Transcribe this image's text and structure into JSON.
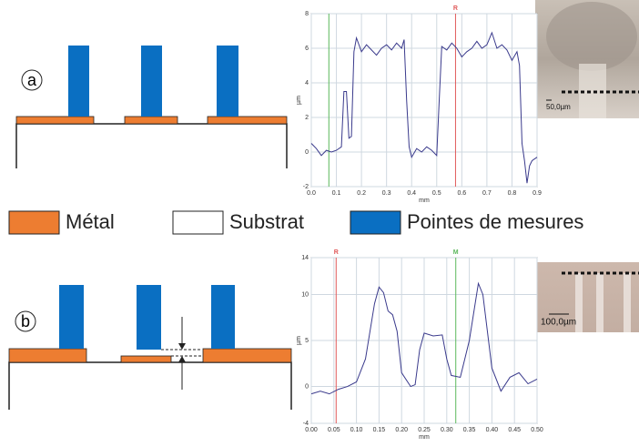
{
  "panel_labels": [
    "a",
    "b"
  ],
  "legend": [
    "Métal",
    "Substrat",
    "Pointes de mesures"
  ],
  "photos": [
    {
      "scale_label": "50,0µm"
    },
    {
      "scale_label": "100,0µm"
    }
  ],
  "chart_data": [
    {
      "type": "line",
      "x_label": "mm",
      "y_label": "µm",
      "xlim": [
        0,
        0.9
      ],
      "ylim": [
        -2,
        8
      ],
      "xticks": [
        {
          "value": 0,
          "label": "0.0"
        },
        0.1,
        0.2,
        0.3,
        0.4,
        0.5,
        0.6,
        0.7,
        0.8,
        0.9
      ],
      "yticks": [
        -2,
        0,
        2,
        4,
        6,
        8
      ],
      "grid": true,
      "markers": [
        {
          "x": 0.07,
          "color": "#5cb85c"
        },
        {
          "x": 0.575,
          "color": "#e05a5a",
          "label": "R"
        }
      ],
      "series": [
        {
          "color": "#3a3a8c",
          "x": [
            0,
            0.02,
            0.04,
            0.06,
            0.08,
            0.1,
            0.12,
            0.13,
            0.14,
            0.15,
            0.16,
            0.17,
            0.18,
            0.2,
            0.22,
            0.24,
            0.26,
            0.28,
            0.3,
            0.32,
            0.34,
            0.36,
            0.37,
            0.38,
            0.39,
            0.4,
            0.42,
            0.44,
            0.46,
            0.48,
            0.5,
            0.51,
            0.52,
            0.54,
            0.56,
            0.58,
            0.6,
            0.62,
            0.64,
            0.66,
            0.68,
            0.7,
            0.72,
            0.74,
            0.76,
            0.78,
            0.8,
            0.82,
            0.83,
            0.84,
            0.85,
            0.86,
            0.87,
            0.88,
            0.9
          ],
          "values": [
            0.5,
            0.2,
            -0.2,
            0.1,
            0,
            0.1,
            0.3,
            3.5,
            3.5,
            0.8,
            0.9,
            5.8,
            6.6,
            5.8,
            6.2,
            5.9,
            5.6,
            6,
            6.2,
            5.9,
            6.3,
            6,
            6.5,
            3,
            0.3,
            -0.3,
            0.2,
            0,
            0.3,
            0.1,
            -0.2,
            3,
            6.1,
            5.9,
            6.3,
            6,
            5.5,
            5.8,
            6,
            6.4,
            6,
            6.2,
            6.9,
            6,
            6.2,
            5.9,
            5.3,
            5.8,
            5,
            0.5,
            -0.5,
            -1.8,
            -0.8,
            -0.5,
            -0.3
          ]
        }
      ]
    },
    {
      "type": "line",
      "x_label": "mm",
      "y_label": "µm",
      "xlim": [
        0,
        0.5
      ],
      "ylim": [
        -4,
        14
      ],
      "xticks": [
        {
          "value": 0,
          "label": "0.00"
        },
        {
          "value": 0.05,
          "label": "0.05"
        },
        {
          "value": 0.1,
          "label": "0.10"
        },
        {
          "value": 0.15,
          "label": "0.15"
        },
        {
          "value": 0.2,
          "label": "0.20"
        },
        {
          "value": 0.25,
          "label": "0.25"
        },
        {
          "value": 0.3,
          "label": "0.30"
        },
        {
          "value": 0.35,
          "label": "0.35"
        },
        {
          "value": 0.4,
          "label": "0.40"
        },
        {
          "value": 0.45,
          "label": "0.45"
        },
        {
          "value": 0.5,
          "label": "0.50"
        }
      ],
      "yticks": [
        -4,
        0,
        5,
        10,
        14
      ],
      "grid": true,
      "markers": [
        {
          "x": 0.055,
          "color": "#e05a5a",
          "label": "R"
        },
        {
          "x": 0.32,
          "color": "#5cb85c",
          "label": "M"
        }
      ],
      "series": [
        {
          "color": "#3a3a8c",
          "x": [
            0,
            0.02,
            0.04,
            0.06,
            0.08,
            0.1,
            0.12,
            0.14,
            0.15,
            0.16,
            0.17,
            0.18,
            0.19,
            0.2,
            0.22,
            0.23,
            0.24,
            0.25,
            0.27,
            0.29,
            0.3,
            0.31,
            0.33,
            0.35,
            0.37,
            0.38,
            0.39,
            0.4,
            0.42,
            0.44,
            0.46,
            0.48,
            0.5
          ],
          "values": [
            -0.8,
            -0.5,
            -0.8,
            -0.3,
            0,
            0.5,
            3,
            9,
            10.8,
            10.2,
            8.2,
            7.8,
            6,
            1.5,
            0,
            0.2,
            4,
            5.8,
            5.5,
            5.6,
            3,
            1.2,
            1,
            5,
            11.2,
            10,
            6,
            2,
            -0.5,
            1,
            1.5,
            0.3,
            0.8
          ]
        }
      ]
    }
  ]
}
